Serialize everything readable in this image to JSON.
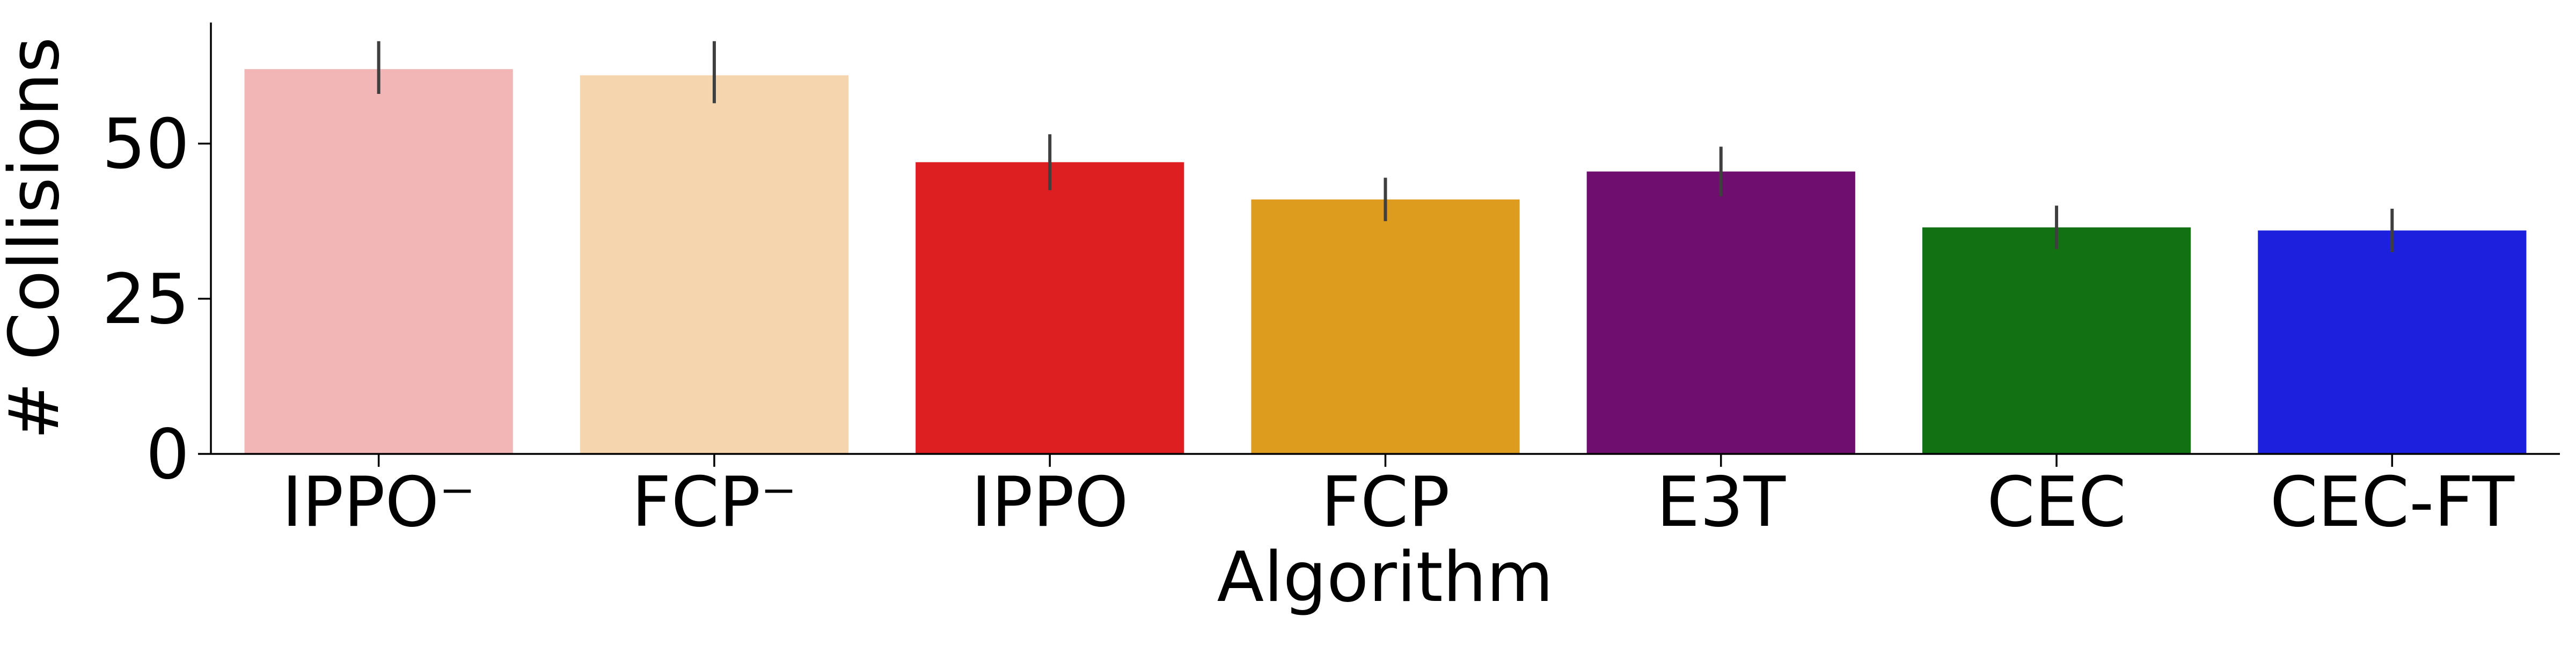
{
  "chart_data": {
    "type": "bar",
    "title": "",
    "xlabel": "Algorithm",
    "ylabel": "# Collisions",
    "categories": [
      "IPPO⁻",
      "FCP⁻",
      "IPPO",
      "FCP",
      "E3T",
      "CEC",
      "CEC-FT"
    ],
    "values": [
      62.0,
      61.0,
      47.0,
      41.0,
      45.5,
      36.5,
      36.0
    ],
    "error_bars": [
      [
        58.0,
        66.5
      ],
      [
        56.5,
        66.5
      ],
      [
        42.5,
        51.5
      ],
      [
        37.5,
        44.5
      ],
      [
        41.5,
        49.5
      ],
      [
        33.0,
        40.0
      ],
      [
        32.5,
        39.5
      ]
    ],
    "colors": [
      "#f2b6b6",
      "#f4d5ae",
      "#de1f21",
      "#de9c1f",
      "#6e0f70",
      "#127211",
      "#1d21de"
    ],
    "error_color": "#3f3f3f",
    "yticks": [
      0,
      25,
      50
    ],
    "ylim": [
      0,
      69.5
    ],
    "grid": false,
    "legend": "none"
  }
}
